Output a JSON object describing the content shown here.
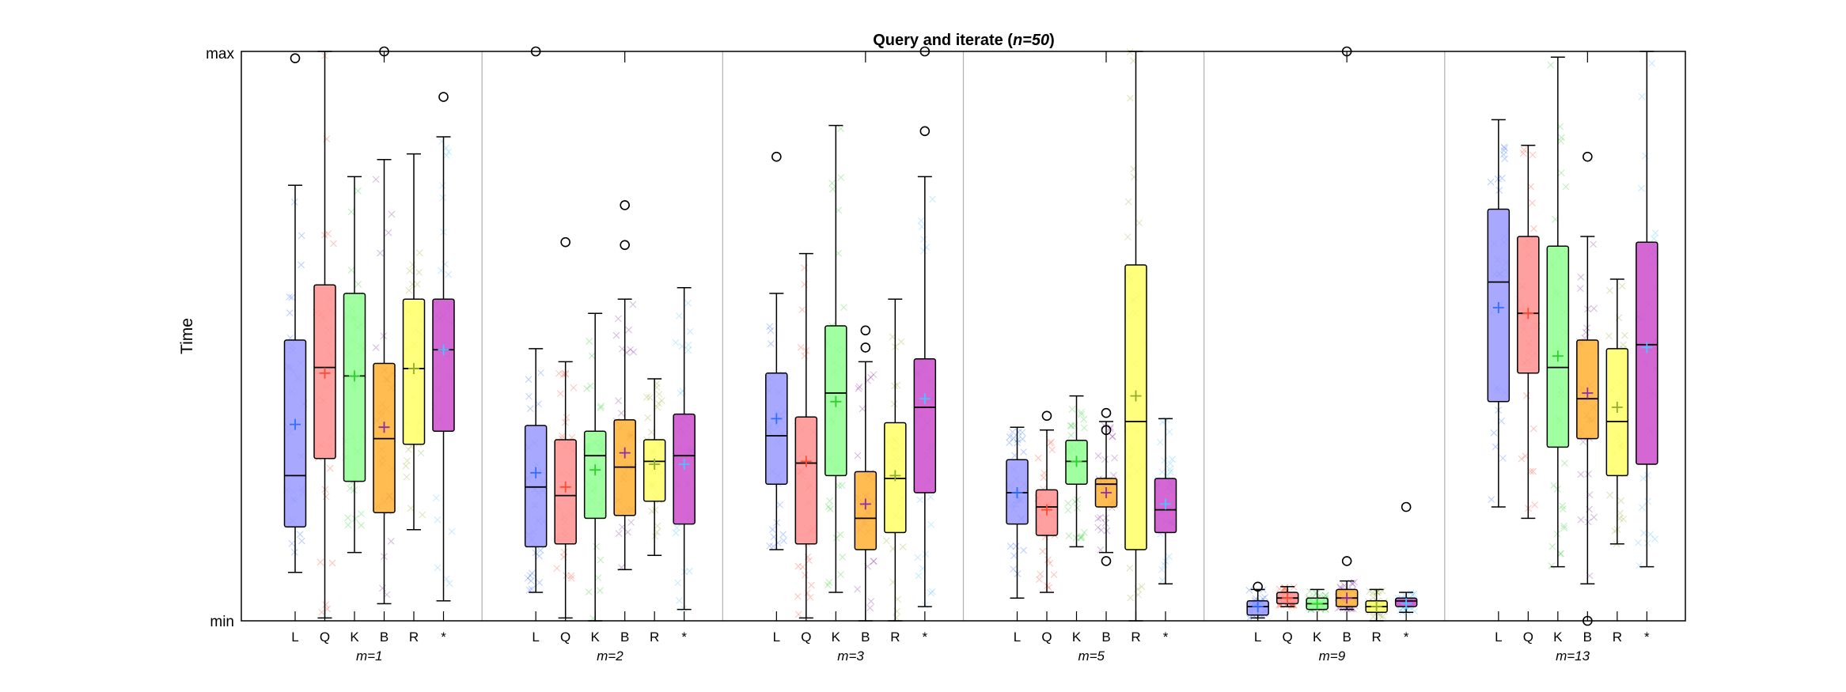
{
  "chart_data": {
    "type": "boxplot",
    "title_prefix": "Query and iterate (",
    "title_italic": "n=50",
    "title_suffix": ")",
    "ylabel": "Time",
    "yticks": [
      "min",
      "max"
    ],
    "ylim": [
      0,
      1
    ],
    "categories": [
      "L",
      "Q",
      "K",
      "B",
      "R",
      "*"
    ],
    "colors": [
      "#9999ff",
      "#ff8f8f",
      "#8fff8f",
      "#ffb033",
      "#ffff66",
      "#cc4ccc"
    ],
    "mean_colors": [
      "#2f6fff",
      "#ff4b2f",
      "#2fcf2f",
      "#8b2fa8",
      "#8fae2f",
      "#4fc0ff"
    ],
    "groups": [
      {
        "label": "m=1",
        "boxes": [
          {
            "min": 0.085,
            "q1": 0.165,
            "median": 0.255,
            "q3": 0.493,
            "max": 0.765,
            "mean": 0.345,
            "outliers": [
              0.988
            ]
          },
          {
            "min": 0.005,
            "q1": 0.285,
            "median": 0.445,
            "q3": 0.59,
            "max": 1.0,
            "mean": 0.435,
            "outliers": []
          },
          {
            "min": 0.12,
            "q1": 0.245,
            "median": 0.43,
            "q3": 0.575,
            "max": 0.78,
            "mean": 0.43,
            "outliers": []
          },
          {
            "min": 0.03,
            "q1": 0.19,
            "median": 0.32,
            "q3": 0.452,
            "max": 0.81,
            "mean": 0.34,
            "outliers": [
              1.0
            ]
          },
          {
            "min": 0.16,
            "q1": 0.31,
            "median": 0.443,
            "q3": 0.565,
            "max": 0.82,
            "mean": 0.443,
            "outliers": []
          },
          {
            "min": 0.035,
            "q1": 0.333,
            "median": 0.476,
            "q3": 0.565,
            "max": 0.85,
            "mean": 0.476,
            "outliers": [
              0.92
            ]
          }
        ]
      },
      {
        "label": "m=2",
        "boxes": [
          {
            "min": 0.05,
            "q1": 0.13,
            "median": 0.235,
            "q3": 0.343,
            "max": 0.478,
            "mean": 0.26,
            "outliers": [
              1.0
            ]
          },
          {
            "min": 0.005,
            "q1": 0.135,
            "median": 0.22,
            "q3": 0.318,
            "max": 0.455,
            "mean": 0.235,
            "outliers": [
              0.665
            ]
          },
          {
            "min": 0.0,
            "q1": 0.18,
            "median": 0.29,
            "q3": 0.333,
            "max": 0.54,
            "mean": 0.265,
            "outliers": []
          },
          {
            "min": 0.09,
            "q1": 0.185,
            "median": 0.27,
            "q3": 0.353,
            "max": 0.565,
            "mean": 0.295,
            "outliers": [
              0.73,
              0.66
            ]
          },
          {
            "min": 0.115,
            "q1": 0.21,
            "median": 0.28,
            "q3": 0.318,
            "max": 0.425,
            "mean": 0.275,
            "outliers": []
          },
          {
            "min": 0.02,
            "q1": 0.17,
            "median": 0.29,
            "q3": 0.363,
            "max": 0.585,
            "mean": 0.275,
            "outliers": []
          }
        ]
      },
      {
        "label": "m=3",
        "boxes": [
          {
            "min": 0.125,
            "q1": 0.24,
            "median": 0.325,
            "q3": 0.435,
            "max": 0.575,
            "mean": 0.355,
            "outliers": [
              0.815
            ]
          },
          {
            "min": 0.005,
            "q1": 0.135,
            "median": 0.277,
            "q3": 0.358,
            "max": 0.645,
            "mean": 0.28,
            "outliers": []
          },
          {
            "min": 0.05,
            "q1": 0.255,
            "median": 0.4,
            "q3": 0.518,
            "max": 0.87,
            "mean": 0.385,
            "outliers": []
          },
          {
            "min": 0.0,
            "q1": 0.125,
            "median": 0.18,
            "q3": 0.262,
            "max": 0.455,
            "mean": 0.205,
            "outliers": [
              0.51,
              0.48
            ]
          },
          {
            "min": 0.0,
            "q1": 0.155,
            "median": 0.25,
            "q3": 0.348,
            "max": 0.565,
            "mean": 0.255,
            "outliers": []
          },
          {
            "min": 0.025,
            "q1": 0.225,
            "median": 0.375,
            "q3": 0.46,
            "max": 0.78,
            "mean": 0.39,
            "outliers": [
              1.0,
              0.86
            ]
          }
        ]
      },
      {
        "label": "m=5",
        "boxes": [
          {
            "min": 0.04,
            "q1": 0.17,
            "median": 0.225,
            "q3": 0.283,
            "max": 0.34,
            "mean": 0.225,
            "outliers": []
          },
          {
            "min": 0.05,
            "q1": 0.15,
            "median": 0.2,
            "q3": 0.23,
            "max": 0.335,
            "mean": 0.195,
            "outliers": [
              0.36
            ]
          },
          {
            "min": 0.13,
            "q1": 0.24,
            "median": 0.28,
            "q3": 0.317,
            "max": 0.395,
            "mean": 0.28,
            "outliers": []
          },
          {
            "min": 0.12,
            "q1": 0.2,
            "median": 0.24,
            "q3": 0.25,
            "max": 0.35,
            "mean": 0.225,
            "outliers": [
              0.365,
              0.335,
              0.105
            ]
          },
          {
            "min": 0.0,
            "q1": 0.125,
            "median": 0.35,
            "q3": 0.625,
            "max": 1.0,
            "mean": 0.395,
            "outliers": []
          },
          {
            "min": 0.065,
            "q1": 0.155,
            "median": 0.195,
            "q3": 0.25,
            "max": 0.355,
            "mean": 0.205,
            "outliers": []
          }
        ]
      },
      {
        "label": "m=9",
        "boxes": [
          {
            "min": 0.005,
            "q1": 0.01,
            "median": 0.025,
            "q3": 0.035,
            "max": 0.055,
            "mean": 0.025,
            "outliers": [
              0.06
            ]
          },
          {
            "min": 0.025,
            "q1": 0.03,
            "median": 0.04,
            "q3": 0.05,
            "max": 0.06,
            "mean": 0.04,
            "outliers": []
          },
          {
            "min": 0.02,
            "q1": 0.02,
            "median": 0.03,
            "q3": 0.04,
            "max": 0.055,
            "mean": 0.03,
            "outliers": []
          },
          {
            "min": 0.02,
            "q1": 0.025,
            "median": 0.04,
            "q3": 0.055,
            "max": 0.07,
            "mean": 0.04,
            "outliers": [
              1.0,
              0.105
            ]
          },
          {
            "min": 0.0,
            "q1": 0.015,
            "median": 0.025,
            "q3": 0.035,
            "max": 0.055,
            "mean": 0.025,
            "outliers": []
          },
          {
            "min": 0.015,
            "q1": 0.025,
            "median": 0.035,
            "q3": 0.04,
            "max": 0.05,
            "mean": 0.03,
            "outliers": [
              0.2
            ]
          }
        ]
      },
      {
        "label": "m=13",
        "boxes": [
          {
            "min": 0.2,
            "q1": 0.385,
            "median": 0.595,
            "q3": 0.723,
            "max": 0.88,
            "mean": 0.55,
            "outliers": []
          },
          {
            "min": 0.18,
            "q1": 0.435,
            "median": 0.54,
            "q3": 0.675,
            "max": 0.835,
            "mean": 0.54,
            "outliers": []
          },
          {
            "min": 0.095,
            "q1": 0.305,
            "median": 0.445,
            "q3": 0.658,
            "max": 0.99,
            "mean": 0.465,
            "outliers": []
          },
          {
            "min": 0.065,
            "q1": 0.32,
            "median": 0.39,
            "q3": 0.493,
            "max": 0.675,
            "mean": 0.4,
            "outliers": [
              0.815,
              0.0
            ]
          },
          {
            "min": 0.135,
            "q1": 0.255,
            "median": 0.35,
            "q3": 0.478,
            "max": 0.6,
            "mean": 0.375,
            "outliers": []
          },
          {
            "min": 0.095,
            "q1": 0.275,
            "median": 0.485,
            "q3": 0.665,
            "max": 1.0,
            "mean": 0.48,
            "outliers": []
          }
        ]
      }
    ]
  }
}
